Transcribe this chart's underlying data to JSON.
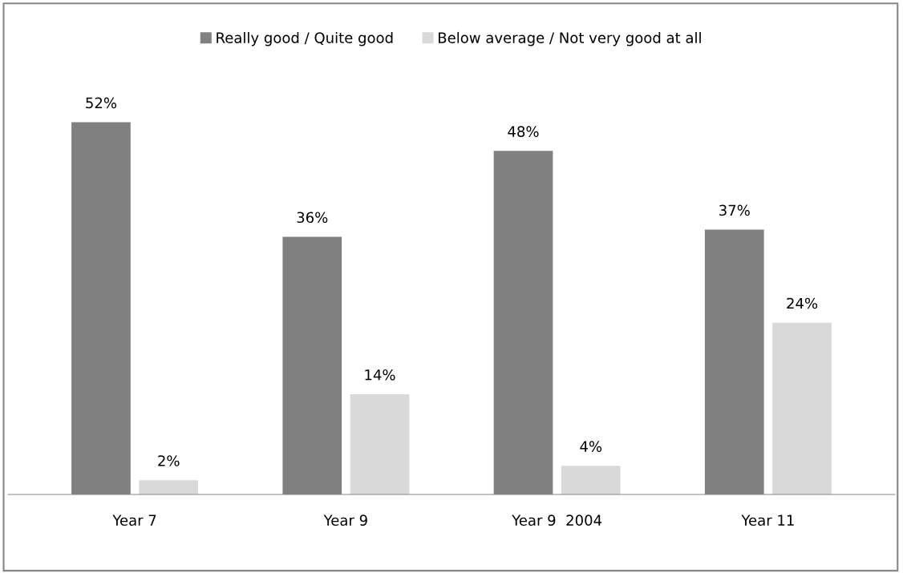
{
  "chart_data": {
    "type": "bar",
    "categories": [
      "Year 7",
      "Year 9",
      "Year 9  2004",
      "Year 11"
    ],
    "series": [
      {
        "name": "Really good / Quite good",
        "color": "#808080",
        "values": [
          52,
          36,
          48,
          37
        ],
        "value_labels": [
          "52%",
          "36%",
          "48%",
          "37%"
        ]
      },
      {
        "name": "Below average / Not very good at all",
        "color": "#d9d9d9",
        "values": [
          2,
          14,
          4,
          24
        ],
        "value_labels": [
          "2%",
          "14%",
          "4%",
          "24%"
        ]
      }
    ],
    "legend": "top",
    "grid": false,
    "tick_labels": "x"
  }
}
